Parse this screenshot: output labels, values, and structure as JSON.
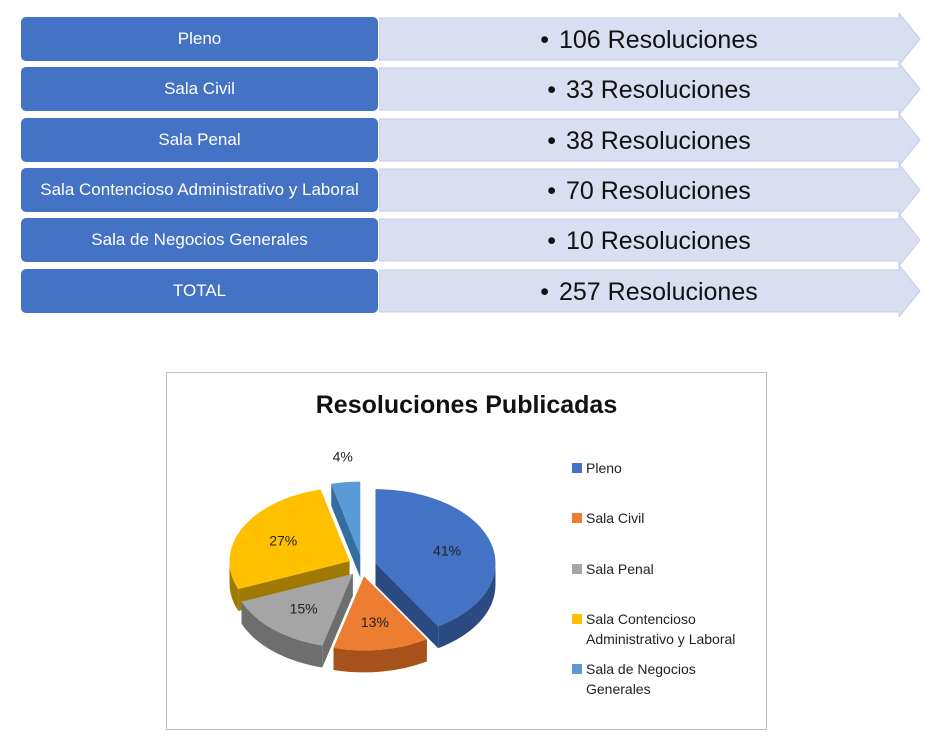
{
  "rows": [
    {
      "label": "Pleno",
      "value": "106 Resoluciones"
    },
    {
      "label": "Sala Civil",
      "value": "33 Resoluciones"
    },
    {
      "label": "Sala Penal",
      "value": "38 Resoluciones"
    },
    {
      "label": "Sala Contencioso Administrativo y Laboral",
      "value": "70 Resoluciones"
    },
    {
      "label": "Sala de Negocios Generales",
      "value": "10 Resoluciones"
    },
    {
      "label": "TOTAL",
      "value": "257 Resoluciones"
    }
  ],
  "bullet": "•",
  "colors": {
    "row_box": "#4472c4",
    "arrow_fill": "#d9dff0",
    "arrow_stroke": "#c5cde6"
  },
  "chart_data": {
    "type": "pie",
    "title": "Resoluciones Publicadas",
    "legend_position": "right",
    "exploded": true,
    "style_3d": true,
    "slices": [
      {
        "name": "Pleno",
        "value": 106,
        "label": "41%",
        "color": "#4472c4",
        "dark": "#2b4a82"
      },
      {
        "name": "Sala Civil",
        "value": 33,
        "label": "13%",
        "color": "#ed7d31",
        "dark": "#a7521b"
      },
      {
        "name": "Sala Penal",
        "value": 38,
        "label": "15%",
        "color": "#a5a5a5",
        "dark": "#6e6e6e"
      },
      {
        "name": "Sala Contencioso Administrativo y Laboral",
        "value": 70,
        "label": "27%",
        "color": "#ffc000",
        "dark": "#a07a00"
      },
      {
        "name": "Sala de Negocios Generales",
        "value": 10,
        "label": "4%",
        "color": "#5b9bd5",
        "dark": "#356d9f"
      }
    ],
    "legend": [
      {
        "line1": "Pleno",
        "line2": ""
      },
      {
        "line1": "Sala Civil",
        "line2": ""
      },
      {
        "line1": "Sala Penal",
        "line2": ""
      },
      {
        "line1": "Sala Contencioso",
        "line2": "Administrativo y Laboral"
      },
      {
        "line1": "Sala de Negocios",
        "line2": "Generales"
      }
    ]
  }
}
